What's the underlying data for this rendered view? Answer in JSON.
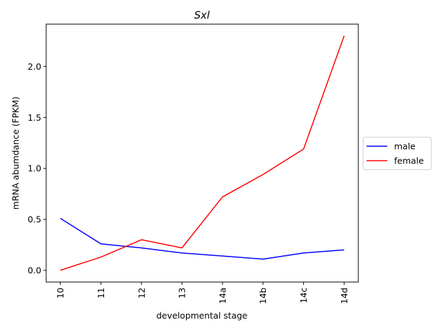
{
  "chart_data": {
    "type": "line",
    "title": "Sxl",
    "xlabel": "developmental stage",
    "ylabel": "mRNA abumdance (FPKM)",
    "categories": [
      "10",
      "11",
      "12",
      "13",
      "14a",
      "14b",
      "14c",
      "14d"
    ],
    "ylim": [
      -0.115,
      2.415
    ],
    "yticks": [
      0.0,
      0.5,
      1.0,
      1.5,
      2.0
    ],
    "ytick_labels": [
      "0.0",
      "0.5",
      "1.0",
      "1.5",
      "2.0"
    ],
    "grid": false,
    "legend_position": "outside-right",
    "series": [
      {
        "name": "male",
        "color": "#0000ff",
        "values": [
          0.51,
          0.26,
          0.22,
          0.17,
          0.14,
          0.11,
          0.17,
          0.2
        ]
      },
      {
        "name": "female",
        "color": "#ff0000",
        "values": [
          0.0,
          0.13,
          0.3,
          0.22,
          0.72,
          0.94,
          1.19,
          2.3
        ]
      }
    ]
  }
}
